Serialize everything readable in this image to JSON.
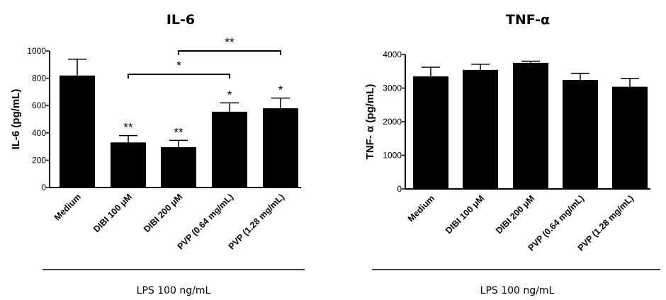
{
  "chart_data": [
    {
      "type": "bar",
      "title": "IL-6",
      "ylabel": "IL-6 (pg/mL)",
      "xlabel": "LPS 100 ng/mL",
      "ylim": [
        0,
        1000
      ],
      "yticks": [
        0,
        200,
        400,
        600,
        800,
        1000
      ],
      "categories": [
        "Medium",
        "DIBI 100 μM",
        "DIBI 200 μM",
        "PVP (0.64 mg/mL)",
        "PVP (1.28 mg/mL)"
      ],
      "values": [
        820,
        330,
        295,
        555,
        580
      ],
      "errors": [
        120,
        50,
        50,
        65,
        75
      ],
      "bar_annotations": [
        "",
        "**",
        "**",
        "*",
        "*"
      ],
      "brackets": [
        {
          "from": 1,
          "to": 3,
          "label": "*"
        },
        {
          "from": 2,
          "to": 4,
          "label": "**"
        }
      ]
    },
    {
      "type": "bar",
      "title": "TNF-α",
      "ylabel": "TNF- α (pg/mL)",
      "xlabel": "LPS 100 ng/mL",
      "ylim": [
        0,
        4000
      ],
      "yticks": [
        0,
        1000,
        2000,
        3000,
        4000
      ],
      "categories": [
        "Medium",
        "DIBI 100 μM",
        "DIBI 200 μM",
        "PVP (0.64 mg/mL)",
        "PVP (1.28 mg/mL)"
      ],
      "values": [
        3350,
        3540,
        3750,
        3240,
        3040
      ],
      "errors": [
        270,
        170,
        50,
        200,
        250
      ],
      "bar_annotations": [
        "",
        "",
        "",
        "",
        ""
      ],
      "brackets": []
    }
  ]
}
